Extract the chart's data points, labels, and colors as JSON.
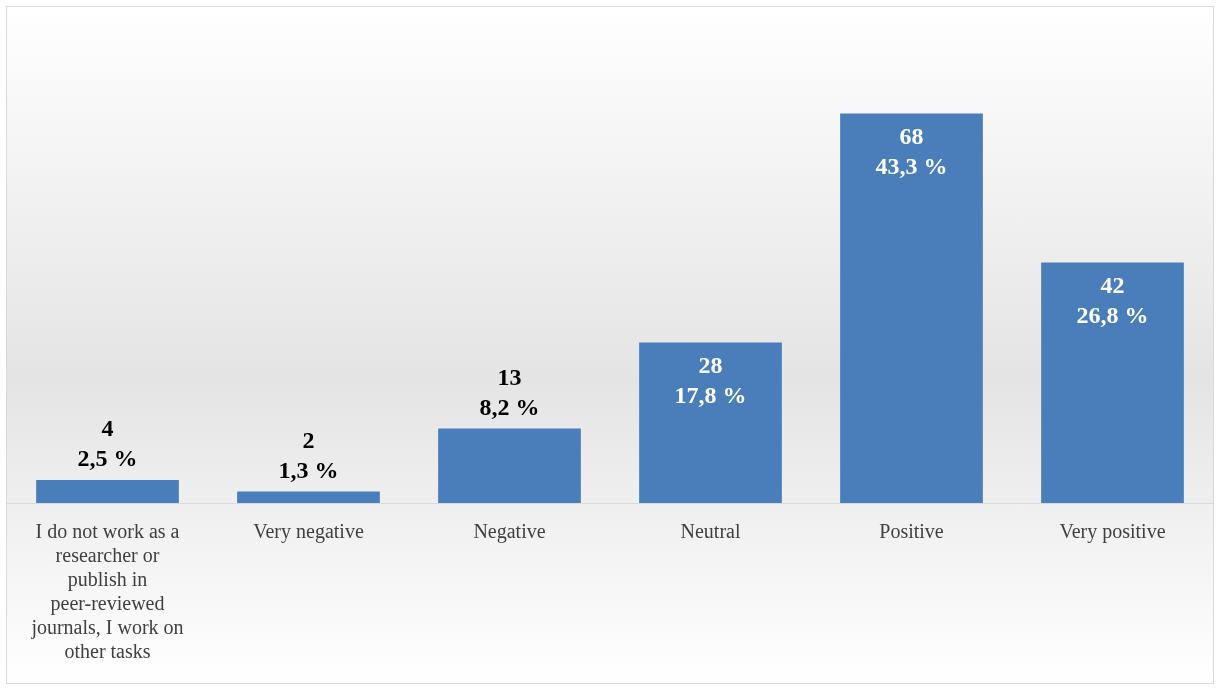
{
  "chart_data": {
    "type": "bar",
    "categories": [
      "I do not work as a researcher or publish in peer-reviewed journals, I work on other tasks",
      "Very negative",
      "Negative",
      "Neutral",
      "Positive",
      "Very positive"
    ],
    "values": [
      4,
      2,
      13,
      28,
      68,
      42
    ],
    "color": "#4a7ebb",
    "value_labels": [
      "4\n2,5 %",
      "2\n1,3 %",
      "13\n8,2 %",
      "28\n17,8 %",
      "68\n43,3 %",
      "42\n26,8 %"
    ],
    "grid": false,
    "legend": false
  }
}
